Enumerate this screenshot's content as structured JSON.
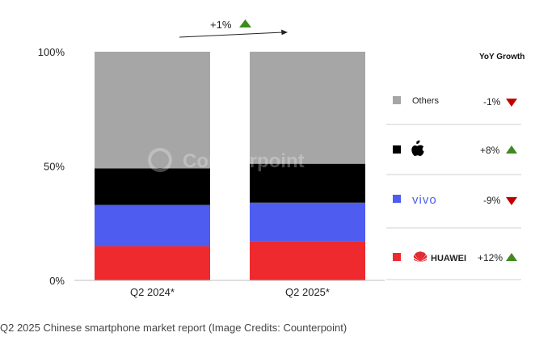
{
  "chart_data": {
    "type": "bar",
    "stacked": true,
    "percent_stacked": true,
    "categories": [
      "Q2 2024*",
      "Q2 2025*"
    ],
    "y_ticks": [
      "0%",
      "50%",
      "100%"
    ],
    "ylim": [
      0,
      100
    ],
    "series": [
      {
        "key": "huawei",
        "color": "#ee2a2f",
        "values": [
          15,
          17
        ]
      },
      {
        "key": "vivo",
        "color": "#4e5cf0",
        "values": [
          18,
          17
        ]
      },
      {
        "key": "apple",
        "color": "#000000",
        "values": [
          16,
          17
        ]
      },
      {
        "key": "others",
        "color": "#a6a6a6",
        "values": [
          51,
          49
        ]
      }
    ],
    "annotation": {
      "text": "+1%",
      "direction": "up"
    },
    "legend": {
      "title": "YoY Growth",
      "placement": "right",
      "items": [
        {
          "key": "others",
          "label": "Others",
          "growth": "-1%",
          "direction": "down",
          "swatch": "#a6a6a6"
        },
        {
          "key": "apple",
          "label": "",
          "icon": "apple-logo-icon",
          "growth": "+8%",
          "direction": "up",
          "swatch": "#000000"
        },
        {
          "key": "vivo",
          "label": "vivo",
          "growth": "-9%",
          "direction": "down",
          "swatch": "#4e5cf0"
        },
        {
          "key": "huawei",
          "label": "HUAWEI",
          "icon": "huawei-logo-icon",
          "growth": "+12%",
          "direction": "up",
          "swatch": "#ee2a2f"
        }
      ]
    },
    "colors": {
      "up": "#3f8a1e",
      "down": "#c00000"
    }
  },
  "watermark": "Counterpoint",
  "caption": "Q2 2025 Chinese smartphone market report (Image Credits: Counterpoint)"
}
